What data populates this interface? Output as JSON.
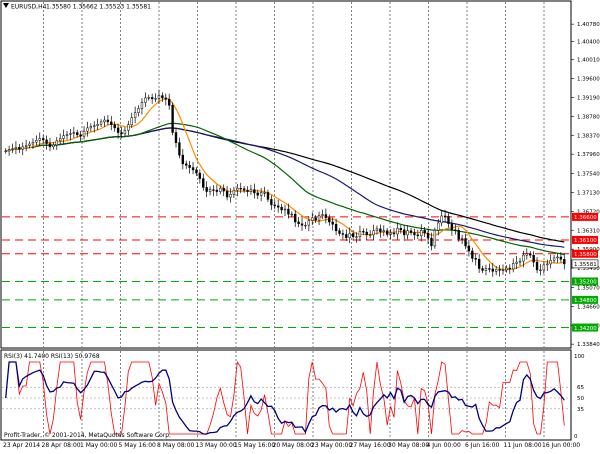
{
  "header": {
    "symbol_label": "EURUSD,H4",
    "ohlc_values": "1.35580 1.35662 1.35523 1.35581",
    "triangle_icon": "down-triangle-icon"
  },
  "price_axis": {
    "ticks": [
      "1.40780",
      "1.40400",
      "1.40010",
      "1.39600",
      "1.39190",
      "1.38780",
      "1.38370",
      "1.37960",
      "1.37540",
      "1.37130",
      "1.36720",
      "1.36310",
      "1.35900",
      "1.35490",
      "1.35070",
      "1.34660",
      "1.34250",
      "1.33840"
    ],
    "h_lines": [
      {
        "label": "1.36600",
        "value": 1.366,
        "color": "#ff0000"
      },
      {
        "label": "1.36100",
        "value": 1.361,
        "color": "#ff0000"
      },
      {
        "label": "1.35800",
        "value": 1.358,
        "color": "#ff0000"
      },
      {
        "label": "1.35200",
        "value": 1.352,
        "color": "#00aa00"
      },
      {
        "label": "1.34800",
        "value": 1.348,
        "color": "#00aa00"
      },
      {
        "label": "1.34200",
        "value": 1.342,
        "color": "#00aa00"
      }
    ],
    "current_price": "1.35581",
    "current_price_value": 1.35581
  },
  "time_axis": {
    "labels": [
      "23 Apr 2014",
      "28 Apr 08:00",
      "1 May 00:00",
      "5 May 16:00",
      "8 May 08:00",
      "13 May 00:00",
      "15 May 16:00",
      "20 May 08:00",
      "23 May 00:00",
      "27 May 16:00",
      "30 May 08:00",
      "4 Jun 00:00",
      "6 Jun 16:00",
      "11 Jun 08:00",
      "16 Jun 00:00"
    ]
  },
  "indicator": {
    "title": "RSI(3) 41.7400  RSI(13) 50.9768",
    "levels": [
      "65",
      "50",
      "35"
    ],
    "scale_max": "100",
    "scale_min": "0",
    "copyright": "Profit-Trader, © 2001-2014, MetaQuotes Software Corp."
  },
  "chart_data": {
    "type": "line",
    "title": "EURUSD,H4",
    "y_range": [
      1.338,
      1.41
    ],
    "series": [
      {
        "key": "price",
        "color": "#000000",
        "values": [
          1.3803,
          1.3806,
          1.3808,
          1.3811,
          1.3807,
          1.3812,
          1.3815,
          1.3818,
          1.3822,
          1.3826,
          1.383,
          1.3827,
          1.3819,
          1.3812,
          1.3816,
          1.3825,
          1.383,
          1.3836,
          1.3839,
          1.3841,
          1.3843,
          1.3838,
          1.3835,
          1.3846,
          1.3853,
          1.3856,
          1.3858,
          1.3861,
          1.3866,
          1.387,
          1.3866,
          1.386,
          1.3853,
          1.3843,
          1.384,
          1.3848,
          1.386,
          1.3875,
          1.3886,
          1.3895,
          1.3908,
          1.3918,
          1.3919,
          1.3916,
          1.3917,
          1.3923,
          1.3918,
          1.3915,
          1.3902,
          1.3843,
          1.3821,
          1.3794,
          1.3775,
          1.3772,
          1.3767,
          1.3762,
          1.3755,
          1.3743,
          1.3724,
          1.3715,
          1.3719,
          1.3718,
          1.3715,
          1.3722,
          1.3716,
          1.3703,
          1.3709,
          1.3718,
          1.3722,
          1.3721,
          1.3718,
          1.3715,
          1.3719,
          1.3712,
          1.3707,
          1.3713,
          1.3713,
          1.3698,
          1.3686,
          1.3684,
          1.3681,
          1.3675,
          1.3677,
          1.3666,
          1.3666,
          1.3649,
          1.3645,
          1.3642,
          1.3642,
          1.3652,
          1.3658,
          1.3653,
          1.3663,
          1.3665,
          1.3658,
          1.3649,
          1.3644,
          1.363,
          1.3624,
          1.3622,
          1.3615,
          1.3624,
          1.3617,
          1.3617,
          1.3629,
          1.3627,
          1.3621,
          1.3621,
          1.363,
          1.3634,
          1.3628,
          1.363,
          1.3622,
          1.3625,
          1.3623,
          1.3635,
          1.3632,
          1.3621,
          1.363,
          1.3626,
          1.3621,
          1.3619,
          1.3631,
          1.3625,
          1.3614,
          1.3597,
          1.3631,
          1.3647,
          1.3662,
          1.3661,
          1.3645,
          1.3632,
          1.3631,
          1.3612,
          1.3613,
          1.3597,
          1.3586,
          1.357,
          1.3568,
          1.3548,
          1.3544,
          1.3548,
          1.3547,
          1.3542,
          1.3546,
          1.3544,
          1.3545,
          1.3549,
          1.3547,
          1.3559,
          1.3562,
          1.3564,
          1.3577,
          1.358,
          1.3577,
          1.3562,
          1.3545,
          1.3545,
          1.3556,
          1.3558,
          1.3566,
          1.3571,
          1.3573,
          1.3568,
          1.3558
        ]
      },
      {
        "key": "ma_orange",
        "color": "#ff8c00",
        "values": []
      },
      {
        "key": "ma_green",
        "color": "#006400",
        "values": []
      },
      {
        "key": "ma_blue",
        "color": "#191970",
        "values": []
      },
      {
        "key": "ma_black",
        "color": "#000000",
        "values": []
      }
    ],
    "rsi_fast": {
      "name": "RSI(3)",
      "color": "#ff0000",
      "period": 3,
      "last": 41.74
    },
    "rsi_slow": {
      "name": "RSI(13)",
      "color": "#000080",
      "period": 13,
      "last": 50.9768
    },
    "ma_periods": {
      "ma_orange": 8,
      "ma_green": 40,
      "ma_blue": 60,
      "ma_black": 80
    }
  }
}
